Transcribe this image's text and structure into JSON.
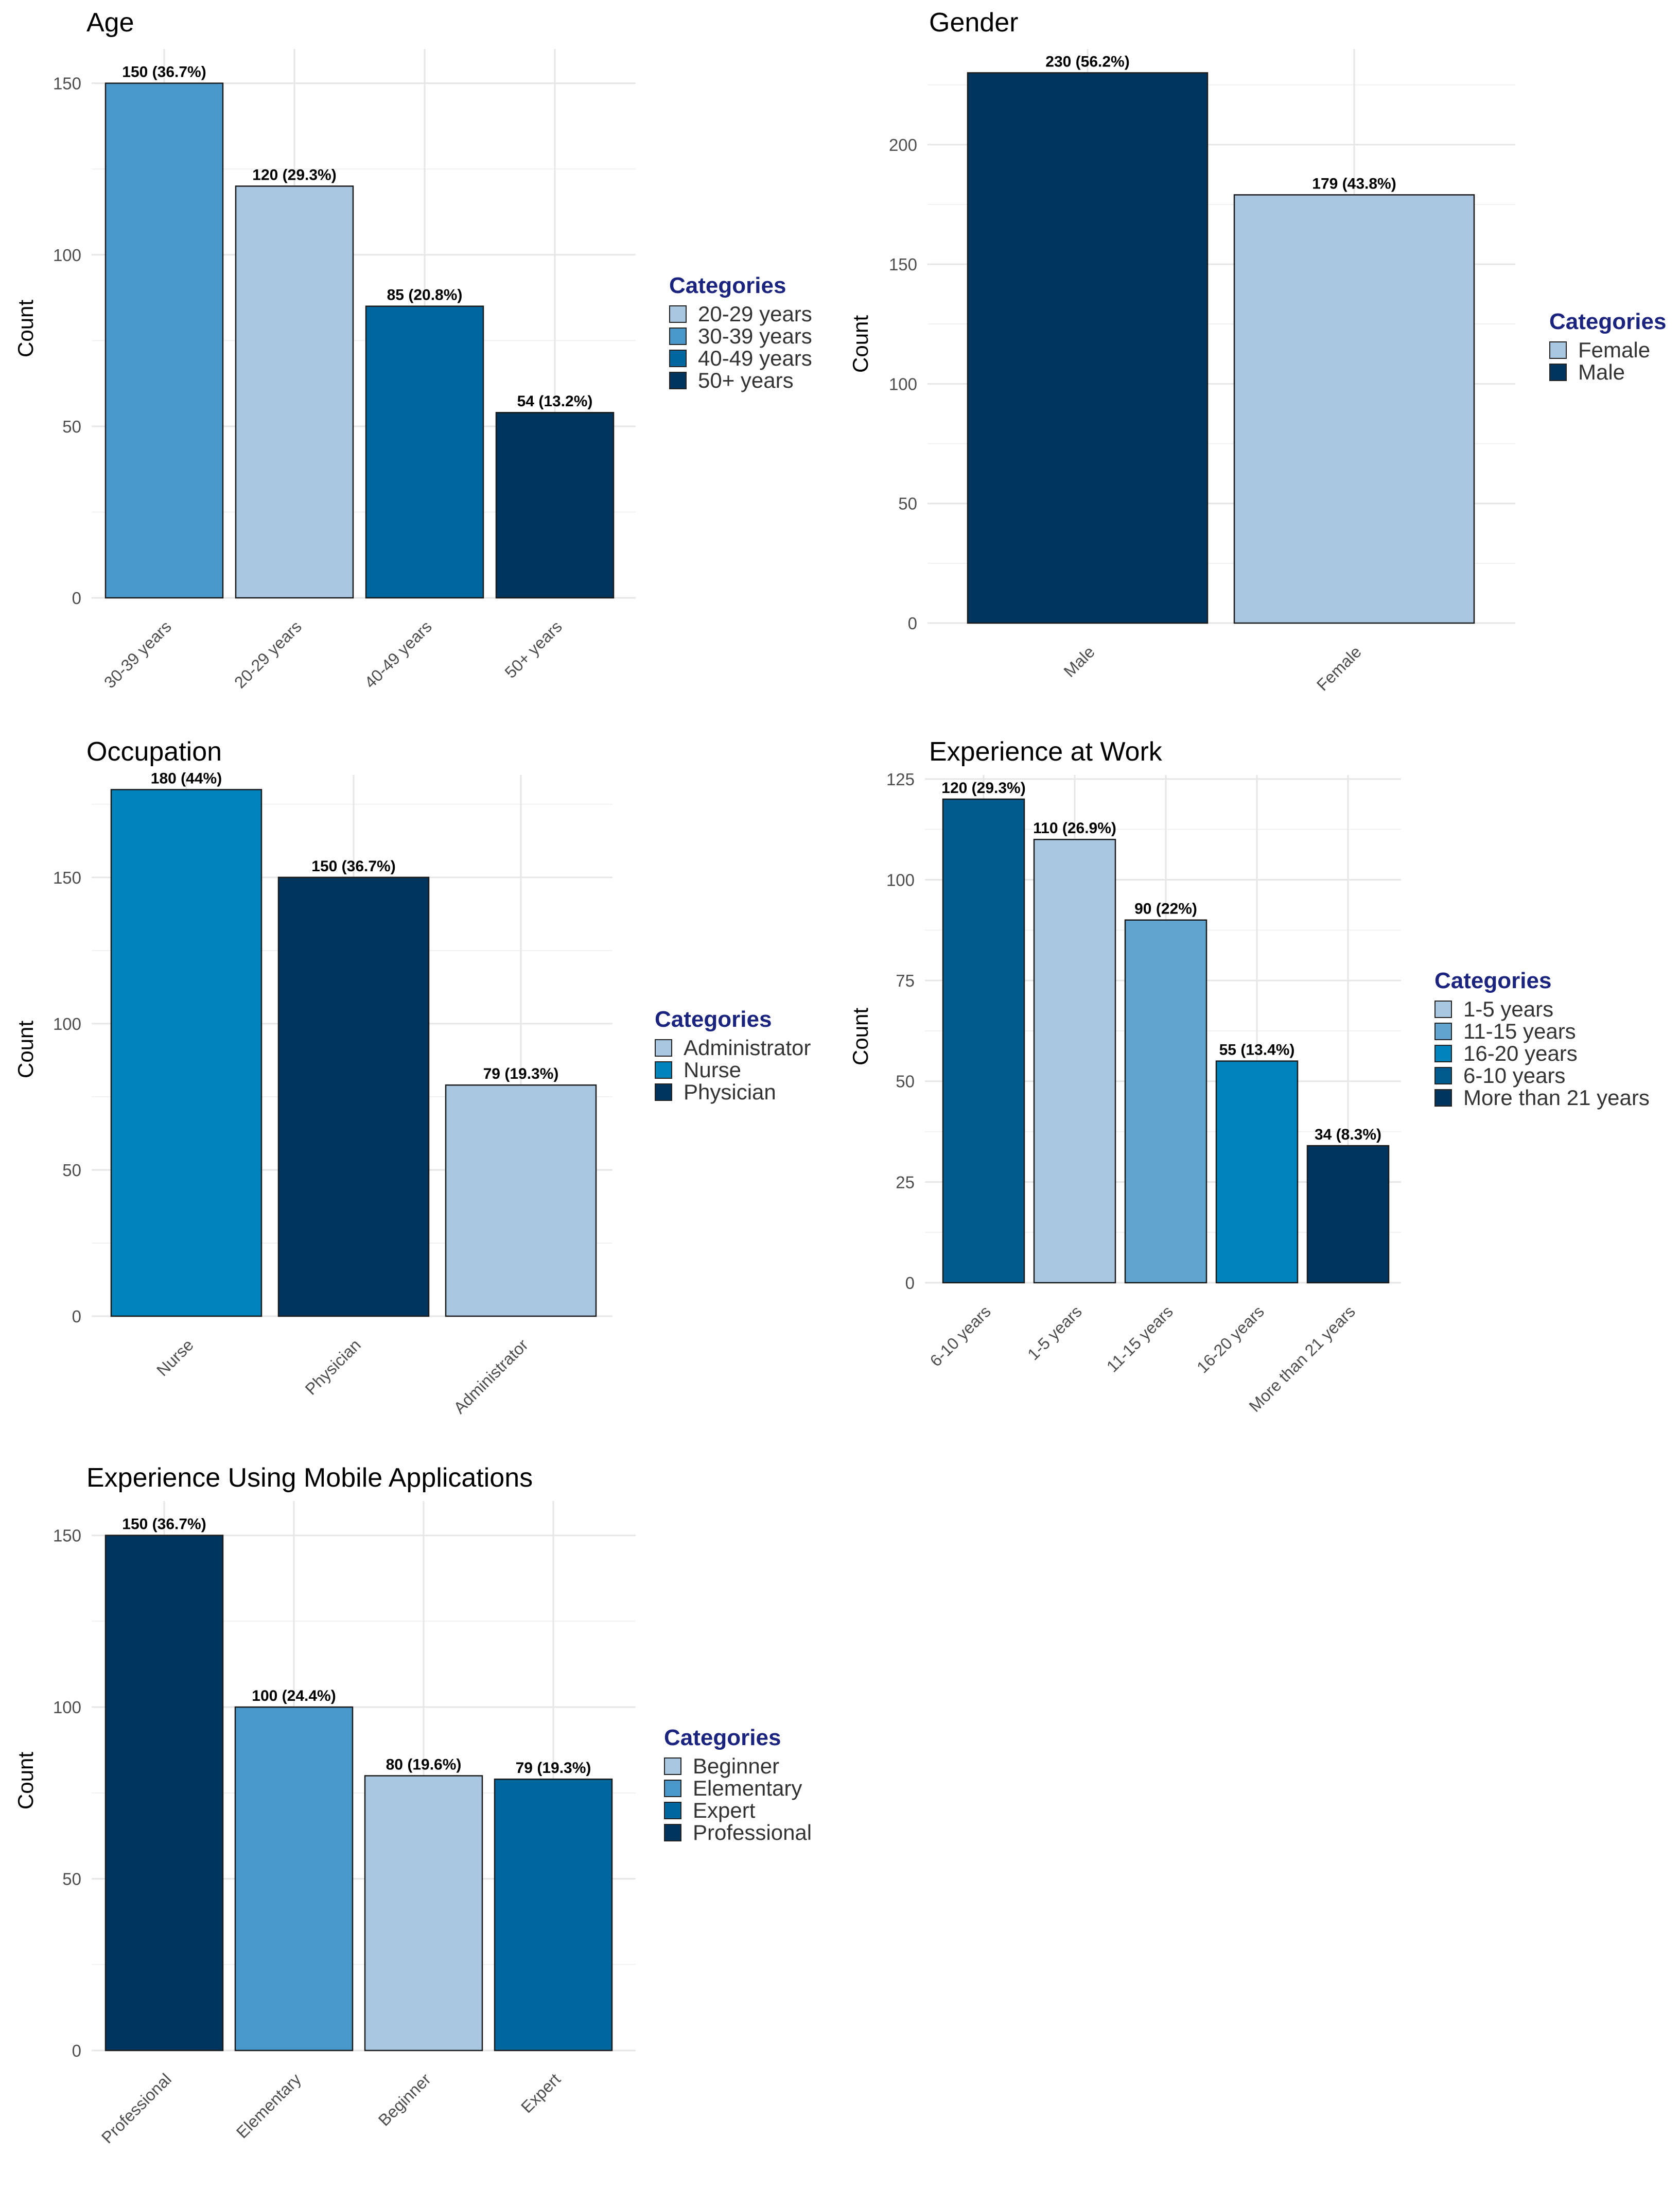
{
  "chart_data": [
    {
      "id": "age",
      "type": "bar",
      "title": "Age",
      "xlabel": "",
      "ylabel": "Count",
      "ylim": [
        0,
        160
      ],
      "yticks": [
        0,
        50,
        100,
        150
      ],
      "categories": [
        "30-39 years",
        "20-29 years",
        "40-49 years",
        "50+ years"
      ],
      "values": [
        150,
        120,
        85,
        54
      ],
      "labels": [
        "150 (36.7%)",
        "120 (29.3%)",
        "85 (20.8%)",
        "54 (13.2%)"
      ],
      "colors": [
        "#4a98c9",
        "#a9c7e0",
        "#00669e",
        "#01355d"
      ],
      "legend": {
        "title": "Categories",
        "position": "right",
        "items": [
          {
            "label": "20-29 years",
            "color": "#a9c7e0"
          },
          {
            "label": "30-39 years",
            "color": "#4a98c9"
          },
          {
            "label": "40-49 years",
            "color": "#00669e"
          },
          {
            "label": "50+ years",
            "color": "#01355d"
          }
        ]
      }
    },
    {
      "id": "gender",
      "type": "bar",
      "title": "Gender",
      "xlabel": "",
      "ylabel": "Count",
      "ylim": [
        0,
        240
      ],
      "yticks": [
        0,
        50,
        100,
        150,
        200
      ],
      "categories": [
        "Male",
        "Female"
      ],
      "values": [
        230,
        179
      ],
      "labels": [
        "230 (56.2%)",
        "179 (43.8%)"
      ],
      "colors": [
        "#01355d",
        "#a9c7e0"
      ],
      "legend": {
        "title": "Categories",
        "position": "right",
        "items": [
          {
            "label": "Female",
            "color": "#a9c7e0"
          },
          {
            "label": "Male",
            "color": "#01355d"
          }
        ]
      }
    },
    {
      "id": "occupation",
      "type": "bar",
      "title": "Occupation",
      "xlabel": "",
      "ylabel": "Count",
      "ylim": [
        0,
        185
      ],
      "yticks": [
        0,
        50,
        100,
        150
      ],
      "categories": [
        "Nurse",
        "Physician",
        "Administrator"
      ],
      "values": [
        180,
        150,
        79
      ],
      "labels": [
        "180 (44%)",
        "150 (36.7%)",
        "79 (19.3%)"
      ],
      "colors": [
        "#0082ba",
        "#01355d",
        "#a9c7e0"
      ],
      "legend": {
        "title": "Categories",
        "position": "right",
        "items": [
          {
            "label": "Administrator",
            "color": "#a9c7e0"
          },
          {
            "label": "Nurse",
            "color": "#0082ba"
          },
          {
            "label": "Physician",
            "color": "#01355d"
          }
        ]
      }
    },
    {
      "id": "experience-work",
      "type": "bar",
      "title": "Experience at Work",
      "xlabel": "",
      "ylabel": "Count",
      "ylim": [
        0,
        126
      ],
      "yticks": [
        0,
        25,
        50,
        75,
        100,
        125
      ],
      "categories": [
        "6-10 years",
        "1-5 years",
        "11-15 years",
        "16-20 years",
        "More than 21 years"
      ],
      "values": [
        120,
        110,
        90,
        55,
        34
      ],
      "labels": [
        "120 (29.3%)",
        "110 (26.9%)",
        "90 (22%)",
        "55 (13.4%)",
        "34 (8.3%)"
      ],
      "colors": [
        "#005a8e",
        "#a9c7e0",
        "#61a4cf",
        "#0082ba",
        "#01355d"
      ],
      "legend": {
        "title": "Categories",
        "position": "right",
        "items": [
          {
            "label": "1-5 years",
            "color": "#a9c7e0"
          },
          {
            "label": "11-15 years",
            "color": "#61a4cf"
          },
          {
            "label": "16-20 years",
            "color": "#0082ba"
          },
          {
            "label": "6-10 years",
            "color": "#005a8e"
          },
          {
            "label": "More than 21 years",
            "color": "#01355d"
          }
        ]
      }
    },
    {
      "id": "experience-mobile",
      "type": "bar",
      "title": "Experience Using Mobile Applications",
      "xlabel": "",
      "ylabel": "Count",
      "ylim": [
        0,
        160
      ],
      "yticks": [
        0,
        50,
        100,
        150
      ],
      "categories": [
        "Professional",
        "Elementary",
        "Beginner",
        "Expert"
      ],
      "values": [
        150,
        100,
        80,
        79
      ],
      "labels": [
        "150 (36.7%)",
        "100 (24.4%)",
        "80 (19.6%)",
        "79 (19.3%)"
      ],
      "colors": [
        "#01355d",
        "#4a98c9",
        "#a9c7e0",
        "#00669e"
      ],
      "legend": {
        "title": "Categories",
        "position": "right",
        "items": [
          {
            "label": "Beginner",
            "color": "#a9c7e0"
          },
          {
            "label": "Elementary",
            "color": "#4a98c9"
          },
          {
            "label": "Expert",
            "color": "#00669e"
          },
          {
            "label": "Professional",
            "color": "#01355d"
          }
        ]
      }
    }
  ]
}
